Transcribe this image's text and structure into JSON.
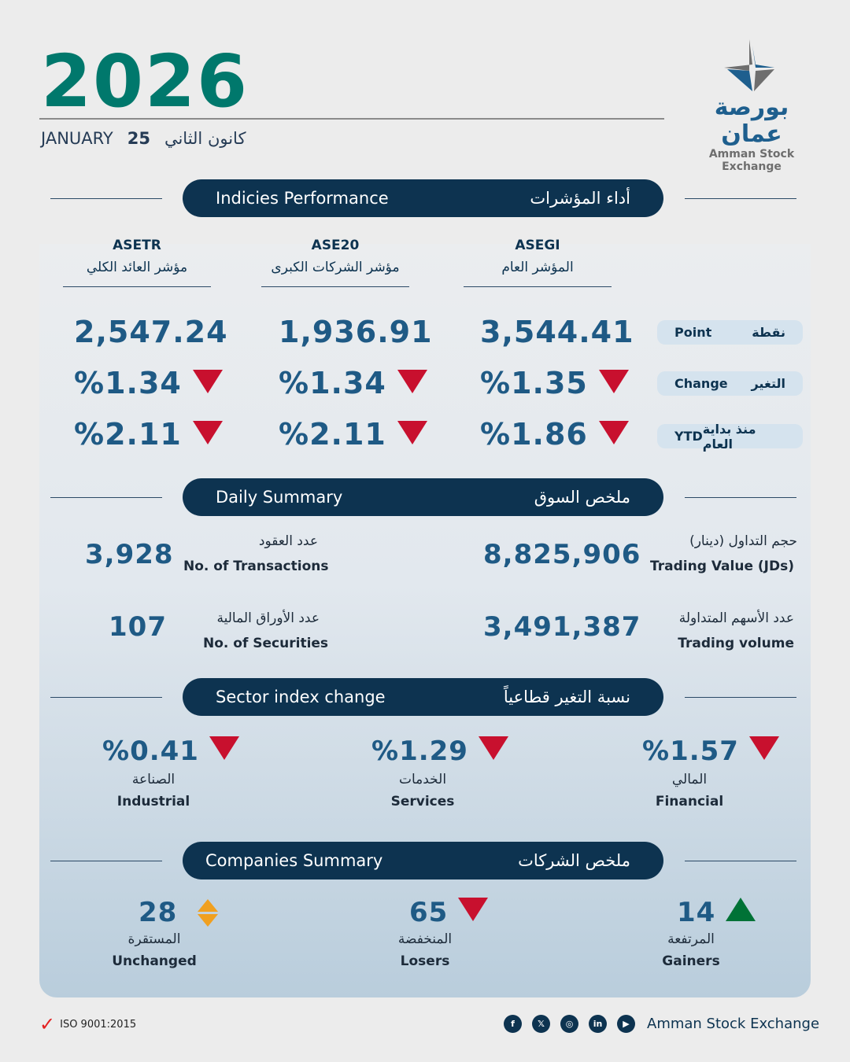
{
  "header": {
    "year": "2026",
    "month_en": "JANUARY",
    "day": "25",
    "month_ar": "كانون الثاني"
  },
  "logo": {
    "ar": "بورصة عمان",
    "en": "Amman Stock Exchange"
  },
  "indices": {
    "title_en": "Indicies Performance",
    "title_ar": "أداء المؤشرات",
    "columns": [
      {
        "code": "ASETR",
        "name_ar": "مؤشر العائد الكلي",
        "point": "2,547.24",
        "change": "%1.34",
        "ytd": "%2.11",
        "change_dir": "down",
        "ytd_dir": "down"
      },
      {
        "code": "ASE20",
        "name_ar": "مؤشر الشركات الكبرى",
        "point": "1,936.91",
        "change": "%1.34",
        "ytd": "%2.11",
        "change_dir": "down",
        "ytd_dir": "down"
      },
      {
        "code": "ASEGI",
        "name_ar": "المؤشر العام",
        "point": "3,544.41",
        "change": "%1.35",
        "ytd": "%1.86",
        "change_dir": "down",
        "ytd_dir": "down"
      }
    ],
    "rows": [
      {
        "en": "Point",
        "ar": "نقطة"
      },
      {
        "en": "Change",
        "ar": "التغير"
      },
      {
        "en": "YTD",
        "ar": "منذ بداية العام"
      }
    ]
  },
  "daily": {
    "title_en": "Daily Summary",
    "title_ar": "ملخص السوق",
    "transactions": {
      "value": "3,928",
      "ar": "عدد العقود",
      "en": "No. of Transactions"
    },
    "trading_value": {
      "value": "8,825,906",
      "ar": "حجم التداول (دينار)",
      "en": "Trading Value (JDs)"
    },
    "securities": {
      "value": "107",
      "ar": "عدد الأوراق المالية",
      "en": "No. of Securities"
    },
    "trading_volume": {
      "value": "3,491,387",
      "ar": "عدد الأسهم المتداولة",
      "en": "Trading volume"
    }
  },
  "sectors": {
    "title_en": "Sector index change",
    "title_ar": "نسبة التغير قطاعياً",
    "items": [
      {
        "value": "%0.41",
        "ar": "الصناعة",
        "en": "Industrial",
        "dir": "down"
      },
      {
        "value": "%1.29",
        "ar": "الخدمات",
        "en": "Services",
        "dir": "down"
      },
      {
        "value": "%1.57",
        "ar": "المالي",
        "en": "Financial",
        "dir": "down"
      }
    ]
  },
  "companies": {
    "title_en": "Companies Summary",
    "title_ar": "ملخص الشركات",
    "items": [
      {
        "value": "28",
        "ar": "المستقرة",
        "en": "Unchanged",
        "dir": "flat"
      },
      {
        "value": "65",
        "ar": "المنخفضة",
        "en": "Losers",
        "dir": "down"
      },
      {
        "value": "14",
        "ar": "المرتفعة",
        "en": "Gainers",
        "dir": "up"
      }
    ]
  },
  "footer": {
    "iso": "ISO 9001:2015",
    "brand": "Amman Stock Exchange",
    "social": [
      "facebook",
      "x",
      "instagram",
      "linkedin",
      "youtube"
    ]
  },
  "colors": {
    "navy": "#0d3350",
    "teal": "#00786c",
    "value": "#1f5a85",
    "down": "#c8102e",
    "up": "#007236",
    "flat": "#f0a020"
  }
}
